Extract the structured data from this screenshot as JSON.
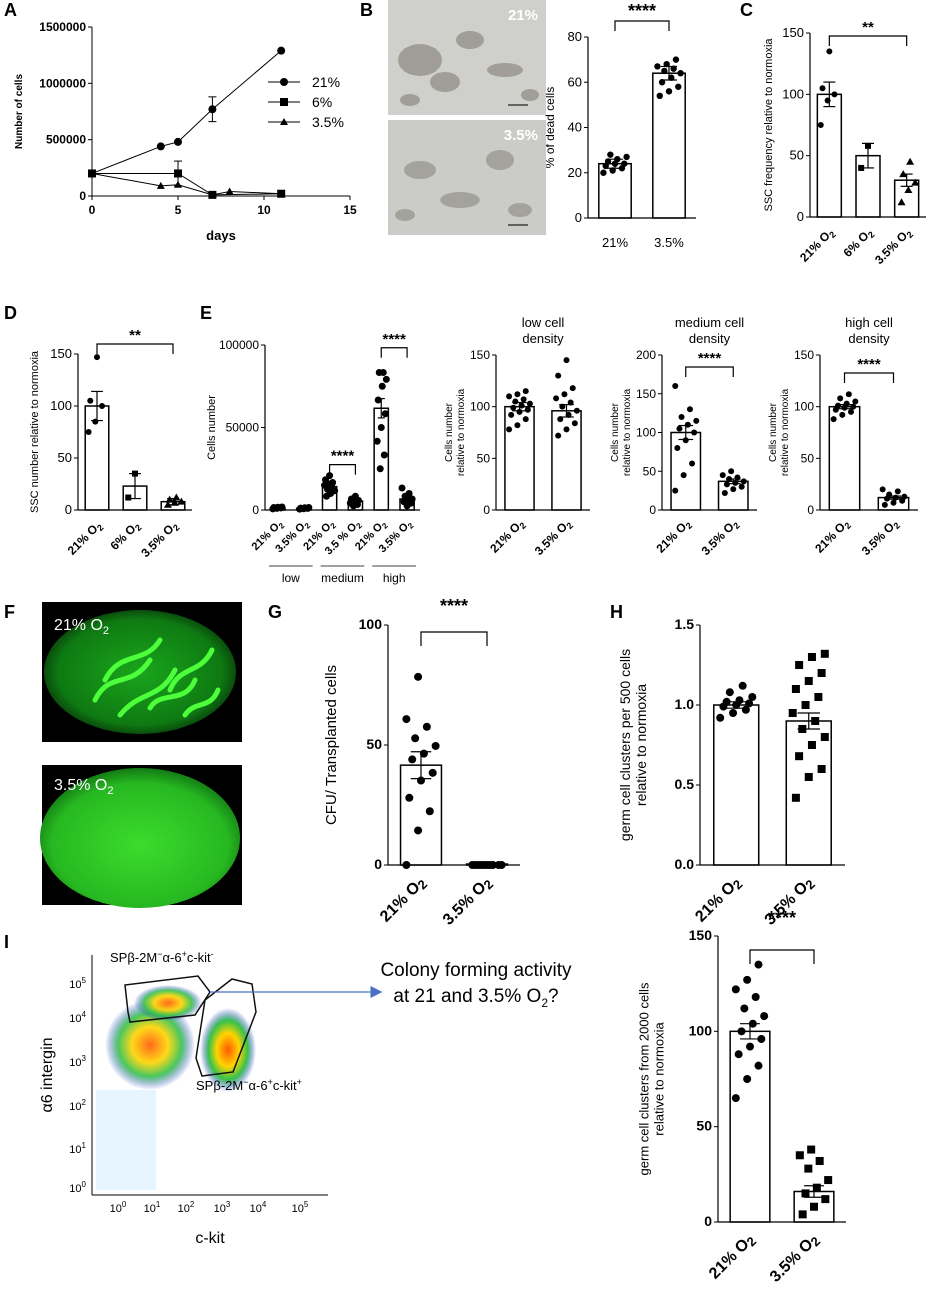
{
  "panels": [
    "A",
    "B",
    "C",
    "D",
    "E",
    "F",
    "G",
    "H",
    "I"
  ],
  "colors": {
    "ink": "#000000",
    "arrow": "#4a72c4",
    "fluor": "#22c21e",
    "micro": "#c9cac6"
  },
  "panel_A": {
    "ylabel": "Number of cells",
    "xlabel": "days",
    "legend": [
      "21%",
      "6%",
      "3.5%"
    ]
  },
  "panel_B": {
    "images": [
      {
        "label": "21%"
      },
      {
        "label": "3.5%"
      }
    ]
  },
  "panel_E_groups": [
    "low",
    "medium",
    "high"
  ],
  "panel_F": {
    "images": [
      {
        "label": "21% O",
        "sub": "2"
      },
      {
        "label": "3.5% O",
        "sub": "2"
      }
    ]
  },
  "panel_I": {
    "flow": {
      "ylabel": "α6 intergin",
      "xlabel": "c-kit",
      "ticks": [
        "10",
        "10",
        "10",
        "10",
        "10",
        "10"
      ],
      "exps": [
        "0",
        "1",
        "2",
        "3",
        "4",
        "5"
      ],
      "gate1_label": [
        "SPβ-2M",
        "−",
        "α-6",
        "+",
        "c-kit",
        "-"
      ],
      "gate2_label": [
        "SPβ-2M",
        "−",
        "α-6",
        "+",
        "c-kit",
        "+"
      ]
    },
    "question": [
      "Colony forming activity",
      "at 21 and 3.5% O",
      "2",
      "?"
    ]
  },
  "chart_data": [
    {
      "id": "A",
      "type": "line",
      "xlabel": "days",
      "ylabel": "Number of cells",
      "xlim": [
        0,
        15
      ],
      "ylim": [
        0,
        1500000
      ],
      "xticks": [
        "0",
        "5",
        "10",
        "15"
      ],
      "yticks": [
        "0",
        "500000",
        "1000000",
        "1500000"
      ],
      "series": [
        {
          "name": "21%",
          "marker": "circle",
          "x": [
            0,
            4,
            5,
            7,
            11
          ],
          "y": [
            200000,
            440000,
            480000,
            770000,
            1290000
          ],
          "err": [
            0,
            0,
            0,
            110000,
            0
          ]
        },
        {
          "name": "6%",
          "marker": "square",
          "x": [
            0,
            5,
            7,
            11
          ],
          "y": [
            200000,
            200000,
            10000,
            20000
          ],
          "err": [
            0,
            110000,
            0,
            0
          ]
        },
        {
          "name": "3.5%",
          "marker": "triangle",
          "x": [
            0,
            4,
            5,
            7,
            8,
            11
          ],
          "y": [
            200000,
            90000,
            100000,
            10000,
            40000,
            20000
          ],
          "err": [
            0,
            0,
            0,
            0,
            0,
            0
          ]
        }
      ]
    },
    {
      "id": "B",
      "type": "bar",
      "ylabel": "% of dead cells",
      "ylim": [
        0,
        80
      ],
      "yticks": [
        "0",
        "20",
        "40",
        "60",
        "80"
      ],
      "categories": [
        "21%",
        "3.5%"
      ],
      "values": [
        24,
        64
      ],
      "err": [
        2,
        3
      ],
      "significance": "****",
      "points": [
        [
          20,
          21,
          22,
          23,
          24,
          24,
          25,
          26,
          27,
          28
        ],
        [
          54,
          56,
          58,
          60,
          62,
          64,
          65,
          66,
          67,
          68,
          70
        ]
      ]
    },
    {
      "id": "C",
      "type": "bar",
      "ylabel": "SSC frequency relative to normoxia",
      "ylim": [
        0,
        150
      ],
      "yticks": [
        "0",
        "50",
        "100",
        "150"
      ],
      "categories": [
        "21% O2",
        "6% O2",
        "3.5% O2"
      ],
      "values": [
        100,
        50,
        30
      ],
      "err": [
        10,
        10,
        5
      ],
      "significance": "**",
      "points": [
        [
          75,
          95,
          100,
          105,
          135
        ],
        [
          40,
          58
        ],
        [
          12,
          22,
          28,
          35,
          45
        ]
      ]
    },
    {
      "id": "D",
      "type": "bar",
      "ylabel": "SSC number relative to normoxia",
      "ylim": [
        0,
        150
      ],
      "yticks": [
        "0",
        "50",
        "100",
        "150"
      ],
      "categories": [
        "21% O2",
        "6% O2",
        "3.5% O2"
      ],
      "values": [
        100,
        23,
        8
      ],
      "err": [
        14,
        12,
        3
      ],
      "significance": "**",
      "points": [
        [
          75,
          85,
          100,
          105,
          147
        ],
        [
          12,
          35
        ],
        [
          5,
          7,
          8,
          10,
          12
        ]
      ]
    },
    {
      "id": "E",
      "type": "bar",
      "ylabel": "Cells number",
      "ylim": [
        0,
        120000
      ],
      "yticks": [
        "0",
        "50000",
        "100000"
      ],
      "categories": [
        "21% O2",
        "3.5% O2",
        "21% O2",
        "3.5 % O2",
        "21% O2",
        "3.5% O2"
      ],
      "groups": [
        "low",
        "medium",
        "high"
      ],
      "values": [
        1500,
        1200,
        17000,
        6500,
        74000,
        8000
      ],
      "err": [
        300,
        300,
        2000,
        1200,
        7000,
        1500
      ],
      "significance": [
        {
          "pair": [
            2,
            3
          ],
          "label": "****"
        },
        {
          "pair": [
            4,
            5
          ],
          "label": "****"
        }
      ],
      "points": [
        [
          800,
          1200,
          1500,
          1800,
          2000,
          2200
        ],
        [
          600,
          900,
          1200,
          1400,
          1600,
          1800
        ],
        [
          10000,
          12000,
          14000,
          15000,
          17000,
          18000,
          19000,
          20000,
          22000,
          25000
        ],
        [
          3000,
          4000,
          5000,
          6000,
          7000,
          8000,
          10000
        ],
        [
          30000,
          40000,
          50000,
          60000,
          70000,
          80000,
          90000,
          95000,
          100000,
          100000
        ],
        [
          3000,
          5000,
          6000,
          7000,
          8000,
          10000,
          12000,
          16000
        ]
      ]
    },
    {
      "id": "E_low",
      "type": "bar",
      "title": "low cell\ndensity",
      "ylabel": "Cells number\nrelative to normoxia",
      "ylim": [
        0,
        150
      ],
      "yticks": [
        "0",
        "50",
        "100",
        "150"
      ],
      "categories": [
        "21% O2",
        "3.5% O2"
      ],
      "values": [
        100,
        96
      ],
      "err": [
        4,
        6
      ],
      "points": [
        [
          78,
          82,
          88,
          92,
          95,
          97,
          99,
          101,
          103,
          105,
          107,
          110,
          112,
          115
        ],
        [
          72,
          78,
          84,
          88,
          92,
          96,
          100,
          104,
          108,
          112,
          118,
          130,
          145
        ]
      ]
    },
    {
      "id": "E_medium",
      "type": "bar",
      "title": "medium cell\ndensity",
      "ylabel": "Cells number\nrelative to normoxia",
      "ylim": [
        0,
        200
      ],
      "yticks": [
        "0",
        "50",
        "100",
        "150",
        "200"
      ],
      "categories": [
        "21% O2",
        "3.5% O2"
      ],
      "values": [
        100,
        37
      ],
      "err": [
        9,
        3
      ],
      "significance": "****",
      "points": [
        [
          25,
          45,
          60,
          80,
          90,
          100,
          105,
          110,
          115,
          120,
          130,
          160
        ],
        [
          22,
          27,
          30,
          33,
          35,
          37,
          40,
          42,
          45,
          50
        ]
      ]
    },
    {
      "id": "E_high",
      "type": "bar",
      "title": "high cell\ndensity",
      "ylabel": "Cells number\nrelative to normoxia",
      "ylim": [
        0,
        150
      ],
      "yticks": [
        "0",
        "50",
        "100",
        "150"
      ],
      "categories": [
        "21% O2",
        "3.5% O2"
      ],
      "values": [
        100,
        12
      ],
      "err": [
        2,
        1.5
      ],
      "significance": "****",
      "points": [
        [
          88,
          92,
          95,
          97,
          99,
          100,
          101,
          103,
          105,
          108,
          112
        ],
        [
          5,
          7,
          9,
          11,
          12,
          13,
          15,
          18,
          20
        ]
      ]
    },
    {
      "id": "G",
      "type": "bar",
      "ylabel": "CFU/ Transplanted cells",
      "ylim": [
        0,
        125
      ],
      "yticks": [
        "0",
        "50",
        "100"
      ],
      "categories": [
        "21% O2",
        "3.5% O2"
      ],
      "values": [
        52,
        0.5
      ],
      "err": [
        7,
        0
      ],
      "significance": "****",
      "points": [
        [
          0,
          18,
          28,
          35,
          44,
          48,
          55,
          58,
          62,
          66,
          72,
          76,
          98
        ],
        [
          0,
          0,
          0,
          0,
          0,
          0,
          0,
          0,
          0,
          0
        ]
      ]
    },
    {
      "id": "H",
      "type": "bar",
      "ylabel": "germ cell clusters per 500 cells\nrelative to normoxia",
      "ylim": [
        0,
        1.5
      ],
      "yticks": [
        "0.0",
        "0.5",
        "1.0",
        "1.5"
      ],
      "categories": [
        "21% O2",
        "3.5% O2"
      ],
      "values": [
        1.0,
        0.9
      ],
      "err": [
        0.02,
        0.05
      ],
      "points": [
        [
          0.92,
          0.95,
          0.97,
          0.99,
          1.0,
          1.01,
          1.02,
          1.03,
          1.05,
          1.08,
          1.12
        ],
        [
          0.42,
          0.55,
          0.6,
          0.68,
          0.75,
          0.8,
          0.85,
          0.9,
          0.95,
          1.0,
          1.05,
          1.1,
          1.15,
          1.2,
          1.25,
          1.3,
          1.32
        ]
      ]
    },
    {
      "id": "I",
      "type": "bar",
      "ylabel": "germ cell clusters from 2000 cells\nrelative to normoxia",
      "ylim": [
        0,
        150
      ],
      "yticks": [
        "0",
        "50",
        "100",
        "150"
      ],
      "categories": [
        "21% O2",
        "3.5% O2"
      ],
      "values": [
        100,
        16
      ],
      "err": [
        4,
        3
      ],
      "significance": "****",
      "points": [
        [
          65,
          75,
          82,
          88,
          92,
          96,
          100,
          104,
          108,
          112,
          118,
          122,
          127,
          135
        ],
        [
          4,
          8,
          12,
          15,
          18,
          22,
          28,
          32,
          35,
          38
        ]
      ]
    }
  ]
}
